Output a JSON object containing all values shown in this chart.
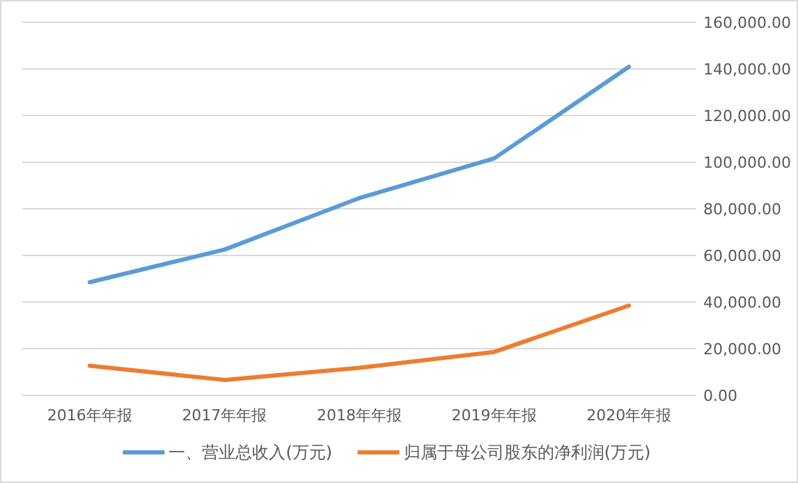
{
  "chart_data": {
    "type": "line",
    "categories": [
      "2016年年报",
      "2017年年报",
      "2018年年报",
      "2019年年报",
      "2020年年报"
    ],
    "series": [
      {
        "name": "一、营业总收入(万元)",
        "color": "#5b9bd5",
        "values": [
          48500,
          62500,
          84600,
          101600,
          140900
        ]
      },
      {
        "name": "归属于母公司股东的净利润(万元)",
        "color": "#ed7d31",
        "values": [
          12700,
          6600,
          11800,
          18600,
          38500
        ]
      }
    ],
    "ylim": [
      0,
      160000
    ],
    "yticks": [
      {
        "value": 0,
        "label": "0.00"
      },
      {
        "value": 20000,
        "label": "20,000.00"
      },
      {
        "value": 40000,
        "label": "40,000.00"
      },
      {
        "value": 60000,
        "label": "60,000.00"
      },
      {
        "value": 80000,
        "label": "80,000.00"
      },
      {
        "value": 100000,
        "label": "100,000.00"
      },
      {
        "value": 120000,
        "label": "120,000.00"
      },
      {
        "value": 140000,
        "label": "140,000.00"
      },
      {
        "value": 160000,
        "label": "160,000.00"
      }
    ],
    "grid": "y",
    "legend": "bottom",
    "marker": "none",
    "line_style": "solid"
  }
}
